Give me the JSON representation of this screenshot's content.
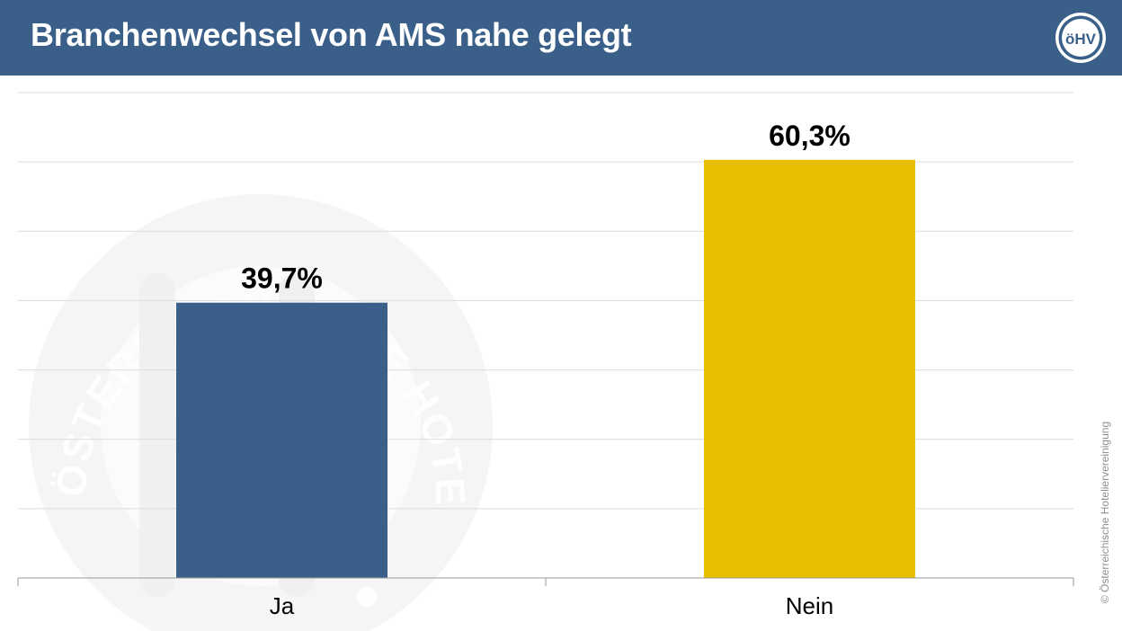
{
  "header": {
    "title": "Branchenwechsel von AMS nahe gelegt",
    "background": "#3a6089",
    "logo_text": "öHV",
    "logo_icon": "ohv-logo-icon"
  },
  "watermark": {
    "text": "ÖSTERREICHISCHE HOTELIERVEREINIGUNG",
    "icon": "ohv-seal-watermark"
  },
  "copyright": "© Österreichische Hoteliervereinigung",
  "chart_data": {
    "type": "bar",
    "title": "Branchenwechsel von AMS nahe gelegt",
    "xlabel": "",
    "ylabel": "",
    "categories": [
      "Ja",
      "Nein"
    ],
    "values": [
      39.7,
      60.3
    ],
    "value_labels": [
      "39,7%",
      "60,3%"
    ],
    "colors": [
      "#3a6089",
      "#e8bf00"
    ],
    "ylim": [
      0,
      70
    ],
    "grid": true,
    "legend": "none"
  }
}
